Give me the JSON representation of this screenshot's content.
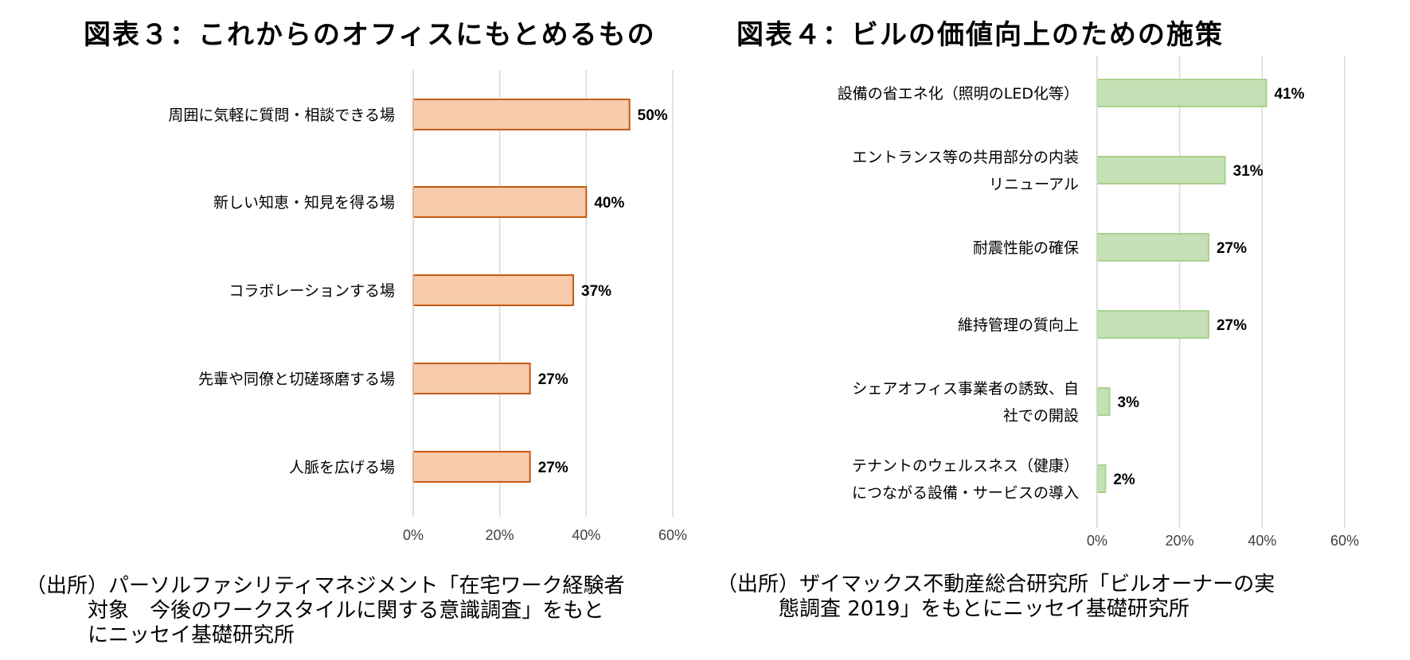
{
  "figures": [
    {
      "title": "図表３：これからのオフィスにもとめるもの",
      "source": "（出所）パーソルファシリティマネジメント「在宅ワーク経験者\n　　　対象　今後のワークスタイルに関する意識調査」をもと\n　　　にニッセイ基礎研究所"
    },
    {
      "title": "図表４：ビルの価値向上のための施策",
      "source": "（出所）ザイマックス不動産総合研究所「ビルオーナーの実\n　　　態調査 2019」をもとにニッセイ基礎研究所"
    }
  ],
  "chart_data": [
    {
      "type": "bar",
      "orientation": "horizontal",
      "title": "",
      "categories": [
        "周囲に気軽に質問・相談できる場",
        "新しい知恵・知見を得る場",
        "コラボレーションする場",
        "先輩や同僚と切磋琢磨する場",
        "人脈を広げる場"
      ],
      "values": [
        50,
        40,
        37,
        27,
        27
      ],
      "value_labels": [
        "50%",
        "40%",
        "37%",
        "27%",
        "27%"
      ],
      "xlim": [
        0,
        60
      ],
      "ticks": [
        0,
        20,
        40,
        60
      ],
      "tick_labels": [
        "0%",
        "20%",
        "40%",
        "60%"
      ],
      "grid": true,
      "colors": {
        "fill": "#f8cbad",
        "stroke": "#c55a11"
      }
    },
    {
      "type": "bar",
      "orientation": "horizontal",
      "title": "",
      "categories": [
        [
          "設備の省エネ化（照明のLED化等）"
        ],
        [
          "エントランス等の共用部分の内装",
          "リニューアル"
        ],
        [
          "耐震性能の確保"
        ],
        [
          "維持管理の質向上"
        ],
        [
          "シェアオフィス事業者の誘致、自",
          "社での開設"
        ],
        [
          "テナントのウェルスネス（健康）",
          "につながる設備・サービスの導入"
        ]
      ],
      "values": [
        41,
        31,
        27,
        27,
        3,
        2
      ],
      "value_labels": [
        "41%",
        "31%",
        "27%",
        "27%",
        "3%",
        "2%"
      ],
      "xlim": [
        0,
        60
      ],
      "ticks": [
        0,
        20,
        40,
        60
      ],
      "tick_labels": [
        "0%",
        "20%",
        "40%",
        "60%"
      ],
      "grid": true,
      "colors": {
        "fill": "#c5e0b4",
        "stroke": "#a9d18e"
      }
    }
  ]
}
